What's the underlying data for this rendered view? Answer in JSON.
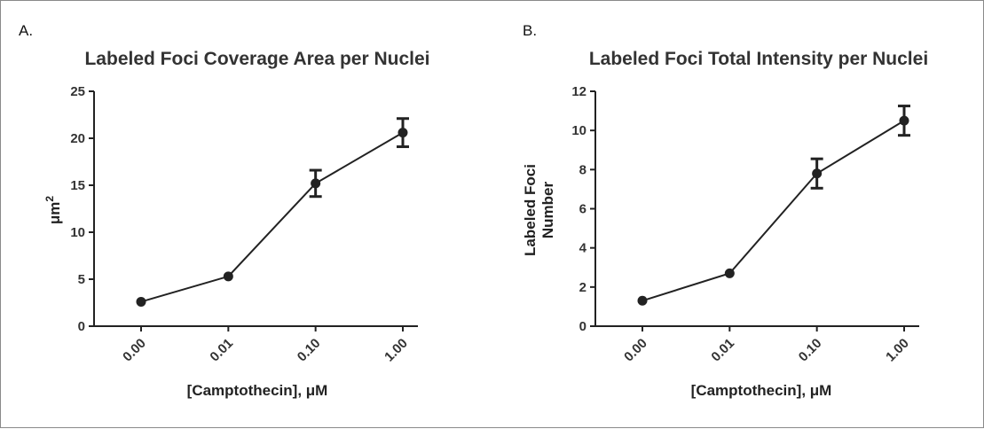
{
  "panels": [
    {
      "letter": "A."
    },
    {
      "letter": "B."
    }
  ],
  "chart_data": [
    {
      "type": "line",
      "title": "Labeled Foci Coverage Area per Nuclei",
      "xlabel": "[Camptothecin], μM",
      "ylabel": "μm",
      "ylabel_superscript": "2",
      "categories": [
        "0.00",
        "0.01",
        "0.10",
        "1.00"
      ],
      "series": [
        {
          "values": [
            2.6,
            5.3,
            15.2,
            20.6
          ],
          "errors": [
            0,
            0,
            1.4,
            1.5
          ]
        }
      ],
      "ylim": [
        0,
        25
      ],
      "yticks": [
        0,
        5,
        10,
        15,
        20,
        25
      ],
      "grid": false,
      "legend": "none"
    },
    {
      "type": "line",
      "title": "Labeled Foci Total Intensity per Nuclei",
      "xlabel": "[Camptothecin], μM",
      "ylabel_lines": [
        "Labeled Foci",
        "Number"
      ],
      "categories": [
        "0.00",
        "0.01",
        "0.10",
        "1.00"
      ],
      "series": [
        {
          "values": [
            1.3,
            2.7,
            7.8,
            10.5
          ],
          "errors": [
            0,
            0,
            0.75,
            0.75
          ]
        }
      ],
      "ylim": [
        0,
        12
      ],
      "yticks": [
        0,
        2,
        4,
        6,
        8,
        10,
        12
      ],
      "grid": false,
      "legend": "none"
    }
  ]
}
